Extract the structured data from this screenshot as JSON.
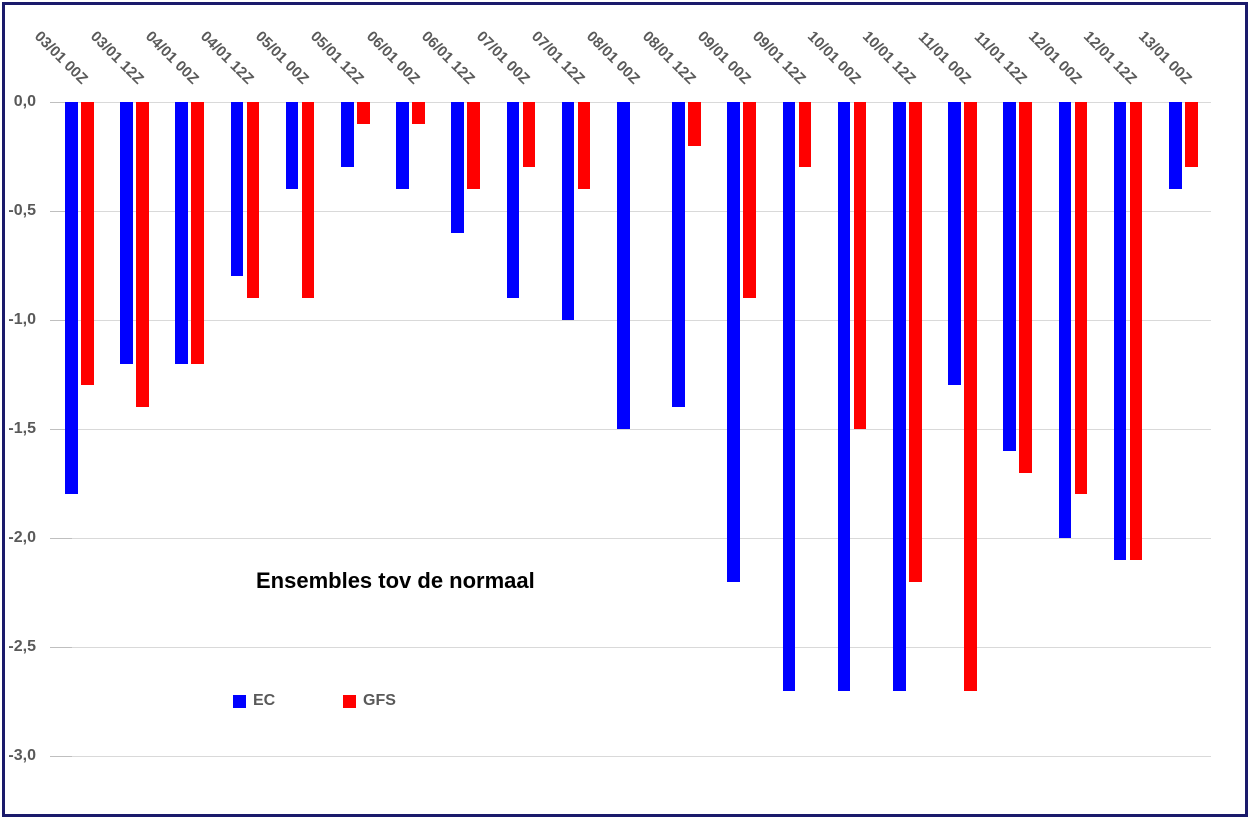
{
  "chart_data": {
    "type": "bar",
    "title": "Ensembles tov de normaal",
    "categories": [
      "03/01 00Z",
      "03/01 12Z",
      "04/01 00Z",
      "04/01 12Z",
      "05/01 00Z",
      "05/01 12Z",
      "06/01 00Z",
      "06/01 12Z",
      "07/01 00Z",
      "07/01 12Z",
      "08/01 00Z",
      "08/01 12Z",
      "09/01 00Z",
      "09/01 12Z",
      "10/01 00Z",
      "10/01 12Z",
      "11/01 00Z",
      "11/01 12Z",
      "12/01 00Z",
      "12/01 12Z",
      "13/01 00Z"
    ],
    "series": [
      {
        "name": "EC",
        "color": "#0000FF",
        "values": [
          -1.8,
          -1.2,
          -1.2,
          -0.8,
          -0.4,
          -0.3,
          -0.4,
          -0.6,
          -0.9,
          -1.0,
          -1.5,
          -1.4,
          -2.2,
          -2.7,
          -2.7,
          -2.7,
          -1.3,
          -1.6,
          -2.0,
          -2.1,
          -0.4
        ]
      },
      {
        "name": "GFS",
        "color": "#FF0000",
        "values": [
          -1.3,
          -1.4,
          -1.2,
          -0.9,
          -0.9,
          -0.1,
          -0.1,
          -0.4,
          -0.3,
          -0.4,
          0,
          -0.2,
          -0.9,
          -0.3,
          -1.5,
          -2.2,
          -2.7,
          -1.7,
          -1.8,
          -2.1,
          -0.3
        ]
      }
    ],
    "y_axis": {
      "ticks": [
        "0,0",
        "-0,5",
        "-1,0",
        "-1,5",
        "-2,0",
        "-2,5",
        "-3,0"
      ],
      "tick_values": [
        0,
        -0.5,
        -1.0,
        -1.5,
        -2.0,
        -2.5,
        -3.0
      ],
      "min": -3.0,
      "max": 0.0,
      "decimal_separator": ","
    },
    "x_axis": {
      "position": "top",
      "label_rotation_deg": 45
    },
    "legend": {
      "position": "inside-lower-left"
    },
    "grid": true,
    "colors": {
      "gridline": "#D9D9D9",
      "axis_text": "#595959",
      "title_text": "#000000",
      "frame_border": "#1A1A6B",
      "background": "#FFFFFF"
    }
  }
}
